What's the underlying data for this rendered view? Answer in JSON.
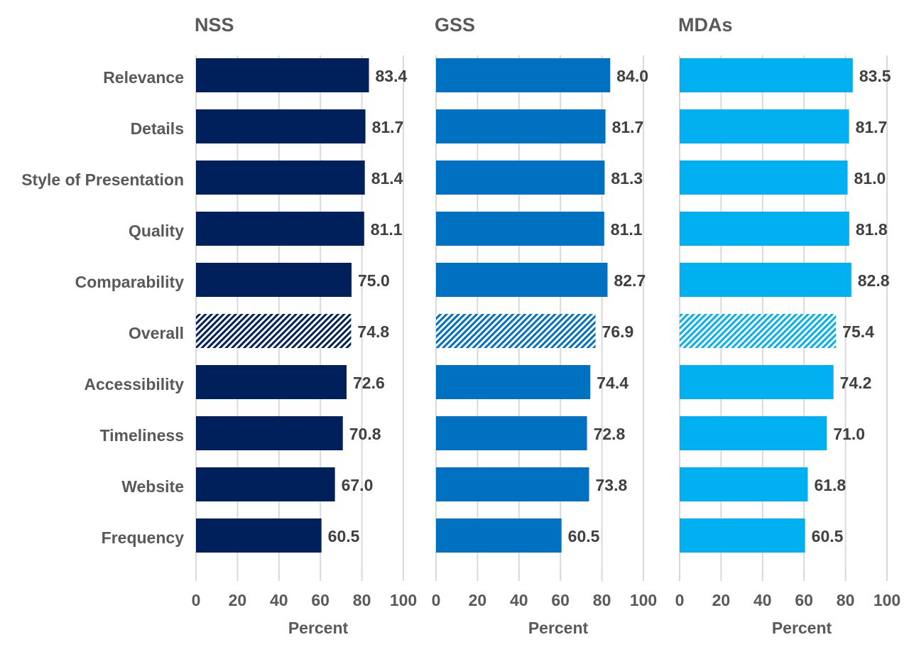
{
  "chart_data": {
    "type": "bar",
    "orientation": "horizontal",
    "categories": [
      "Relevance",
      "Details",
      "Style of Presentation",
      "Quality",
      "Comparability",
      "Overall",
      "Accessibility",
      "Timeliness",
      "Website",
      "Frequency"
    ],
    "highlighted_category": "Overall",
    "xlim": [
      0,
      100
    ],
    "xticks": [
      "0",
      "20",
      "40",
      "60",
      "80",
      "100"
    ],
    "grid": true,
    "panels": [
      {
        "title": "NSS",
        "xlabel": "Percent",
        "color": "#00205B",
        "values": [
          83.4,
          81.7,
          81.4,
          81.1,
          75.0,
          74.8,
          72.6,
          70.8,
          67.0,
          60.5
        ],
        "labels": [
          "83.4",
          "81.7",
          "81.4",
          "81.1",
          "75.0",
          "74.8",
          "72.6",
          "70.8",
          "67.0",
          "60.5"
        ]
      },
      {
        "title": "GSS",
        "xlabel": "Percent",
        "color": "#0070C0",
        "values": [
          84.0,
          81.7,
          81.3,
          81.1,
          82.7,
          76.9,
          74.4,
          72.8,
          73.8,
          60.5
        ],
        "labels": [
          "84.0",
          "81.7",
          "81.3",
          "81.1",
          "82.7",
          "76.9",
          "74.4",
          "72.8",
          "73.8",
          "60.5"
        ]
      },
      {
        "title": "MDAs",
        "xlabel": "Percent",
        "color": "#00B0F0",
        "values": [
          83.5,
          81.7,
          81.0,
          81.8,
          82.8,
          75.4,
          74.2,
          71.0,
          61.8,
          60.5
        ],
        "labels": [
          "83.5",
          "81.7",
          "81.0",
          "81.8",
          "82.8",
          "75.4",
          "74.2",
          "71.0",
          "61.8",
          "60.5"
        ]
      }
    ]
  }
}
